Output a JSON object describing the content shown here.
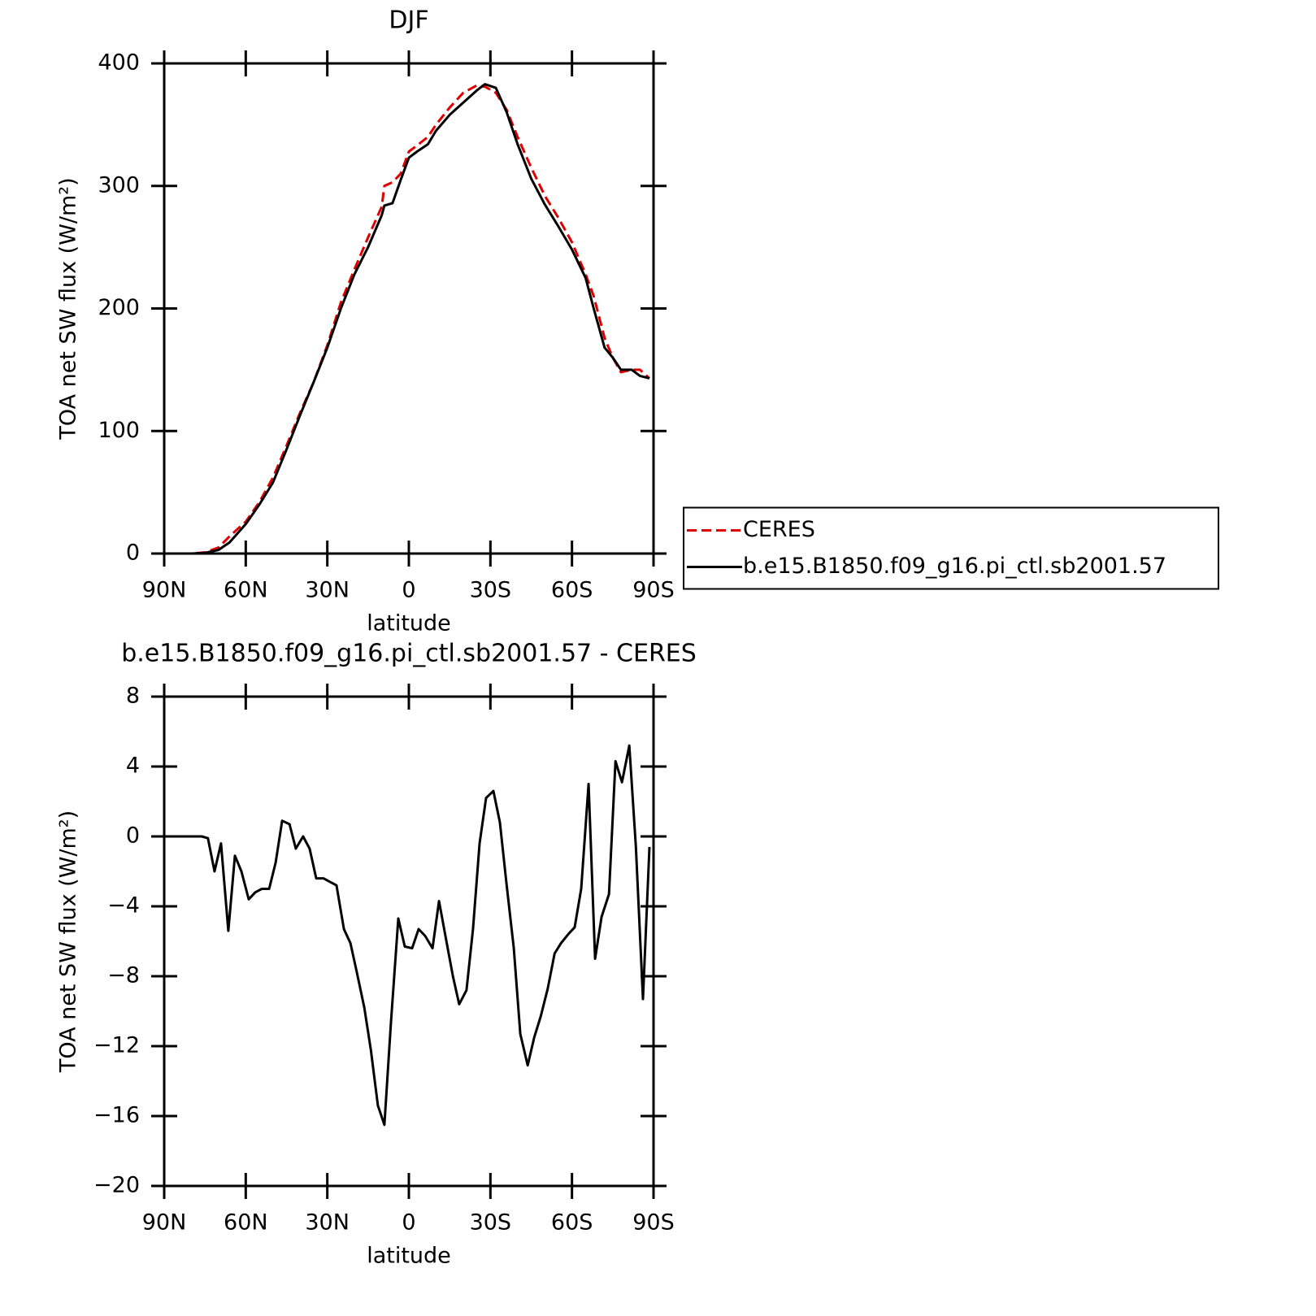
{
  "chart_data": [
    {
      "type": "line",
      "title": "DJF",
      "xlabel": "latitude",
      "ylabel": "TOA net SW flux (W/m²)",
      "x": [
        89,
        80,
        75,
        70,
        66,
        60,
        55,
        50,
        45,
        40,
        35,
        30,
        25,
        20,
        15,
        10,
        9,
        6,
        3,
        0,
        -3,
        -7,
        -10,
        -15,
        -20,
        -25,
        -28,
        -32,
        -36,
        -40,
        -45,
        -50,
        -55,
        -60,
        -65,
        -68,
        -72,
        -75,
        -78,
        -82,
        -85,
        -88.5
      ],
      "series": [
        {
          "name": "CERES",
          "color": "#e00000",
          "style": "dashed",
          "values": [
            0,
            0,
            1,
            5,
            14,
            26,
            42,
            62,
            88,
            115,
            140,
            170,
            205,
            232,
            258,
            283,
            300,
            303,
            310,
            328,
            333,
            340,
            350,
            364,
            376,
            382,
            381,
            376,
            362,
            340,
            315,
            292,
            274,
            254,
            228,
            210,
            176,
            160,
            148,
            150,
            150,
            143
          ]
        },
        {
          "name": "b.e15.B1850.f09_g16.pi_ctl.sb2001.57",
          "color": "#000000",
          "style": "solid",
          "values": [
            0,
            0,
            0.5,
            3,
            9,
            24,
            40,
            58,
            85,
            113,
            140,
            168,
            200,
            228,
            250,
            276,
            284,
            286,
            305,
            323,
            328,
            334,
            345,
            358,
            368,
            378,
            383,
            380,
            360,
            334,
            306,
            285,
            267,
            248,
            225,
            200,
            168,
            160,
            150,
            150,
            145,
            143
          ]
        }
      ],
      "xlim": [
        90,
        -90
      ],
      "xticks": [
        {
          "value": 90,
          "label": "90N"
        },
        {
          "value": 60,
          "label": "60N"
        },
        {
          "value": 30,
          "label": "30N"
        },
        0,
        {
          "value": -30,
          "label": "30S"
        },
        {
          "value": -60,
          "label": "60S"
        },
        {
          "value": -90,
          "label": "90S"
        }
      ],
      "ylim": [
        0,
        400
      ],
      "yticks": [
        0,
        100,
        200,
        300,
        400
      ],
      "legend": "right"
    },
    {
      "type": "line",
      "title": "b.e15.B1850.f09_g16.pi_ctl.sb2001.57 - CERES",
      "xlabel": "latitude",
      "ylabel": "TOA net SW flux (W/m²)",
      "x": [
        89,
        78.6,
        76.2,
        73.9,
        71.5,
        69.1,
        66.4,
        64,
        61.6,
        58.9,
        56.5,
        54.1,
        51.4,
        49,
        46.6,
        43.9,
        41.6,
        38.9,
        36.5,
        34.1,
        31.4,
        29,
        26.6,
        23.9,
        21.5,
        19.1,
        16.4,
        14,
        11.4,
        9,
        6.6,
        3.9,
        1.5,
        -1.2,
        -3.6,
        -6,
        -8.7,
        -11.1,
        -13.8,
        -16.2,
        -18.5,
        -21.2,
        -23.6,
        -26,
        -28.4,
        -31.1,
        -33.5,
        -35.9,
        -38.6,
        -41,
        -43.7,
        -46.1,
        -48.5,
        -51.1,
        -53.6,
        -56,
        -58.6,
        -61,
        -63.4,
        -66.1,
        -68.5,
        -70.9,
        -73.6,
        -76,
        -78.4,
        -81.1,
        -83.5,
        -86.1,
        -88.5
      ],
      "color": "#000000",
      "values": [
        0,
        0,
        0,
        -0.1,
        -2.0,
        -0.4,
        -5.4,
        -1.1,
        -2.0,
        -3.6,
        -3.2,
        -3.0,
        -3.0,
        -1.5,
        0.9,
        0.7,
        -0.7,
        0,
        -0.7,
        -2.4,
        -2.4,
        -2.6,
        -2.8,
        -5.3,
        -6.1,
        -7.8,
        -9.8,
        -12.2,
        -15.4,
        -16.5,
        -10.7,
        -4.7,
        -6.3,
        -6.4,
        -5.3,
        -5.7,
        -6.4,
        -3.7,
        -6,
        -8,
        -9.6,
        -8.8,
        -5.3,
        -0.4,
        2.2,
        2.6,
        0.8,
        -2.7,
        -6.4,
        -11.3,
        -13.1,
        -11.5,
        -10.3,
        -8.7,
        -6.7,
        -6.1,
        -5.6,
        -5.2,
        -3.0,
        3.0,
        -7.0,
        -4.6,
        -3.3,
        4.3,
        3.1,
        5.2,
        -0.6,
        -9.3,
        -0.6
      ],
      "xlim": [
        90,
        -90
      ],
      "xticks": [
        {
          "value": 90,
          "label": "90N"
        },
        {
          "value": 60,
          "label": "60N"
        },
        {
          "value": 30,
          "label": "30N"
        },
        0,
        {
          "value": -30,
          "label": "30S"
        },
        {
          "value": -60,
          "label": "60S"
        },
        {
          "value": -90,
          "label": "90S"
        }
      ],
      "ylim": [
        -20,
        8
      ],
      "yticks": [
        {
          "value": -20,
          "label": "−20"
        },
        {
          "value": -16,
          "label": "−16"
        },
        {
          "value": -12,
          "label": "−12"
        },
        {
          "value": -8,
          "label": "−8"
        },
        {
          "value": -4,
          "label": "−4"
        },
        0,
        4,
        8
      ]
    }
  ]
}
